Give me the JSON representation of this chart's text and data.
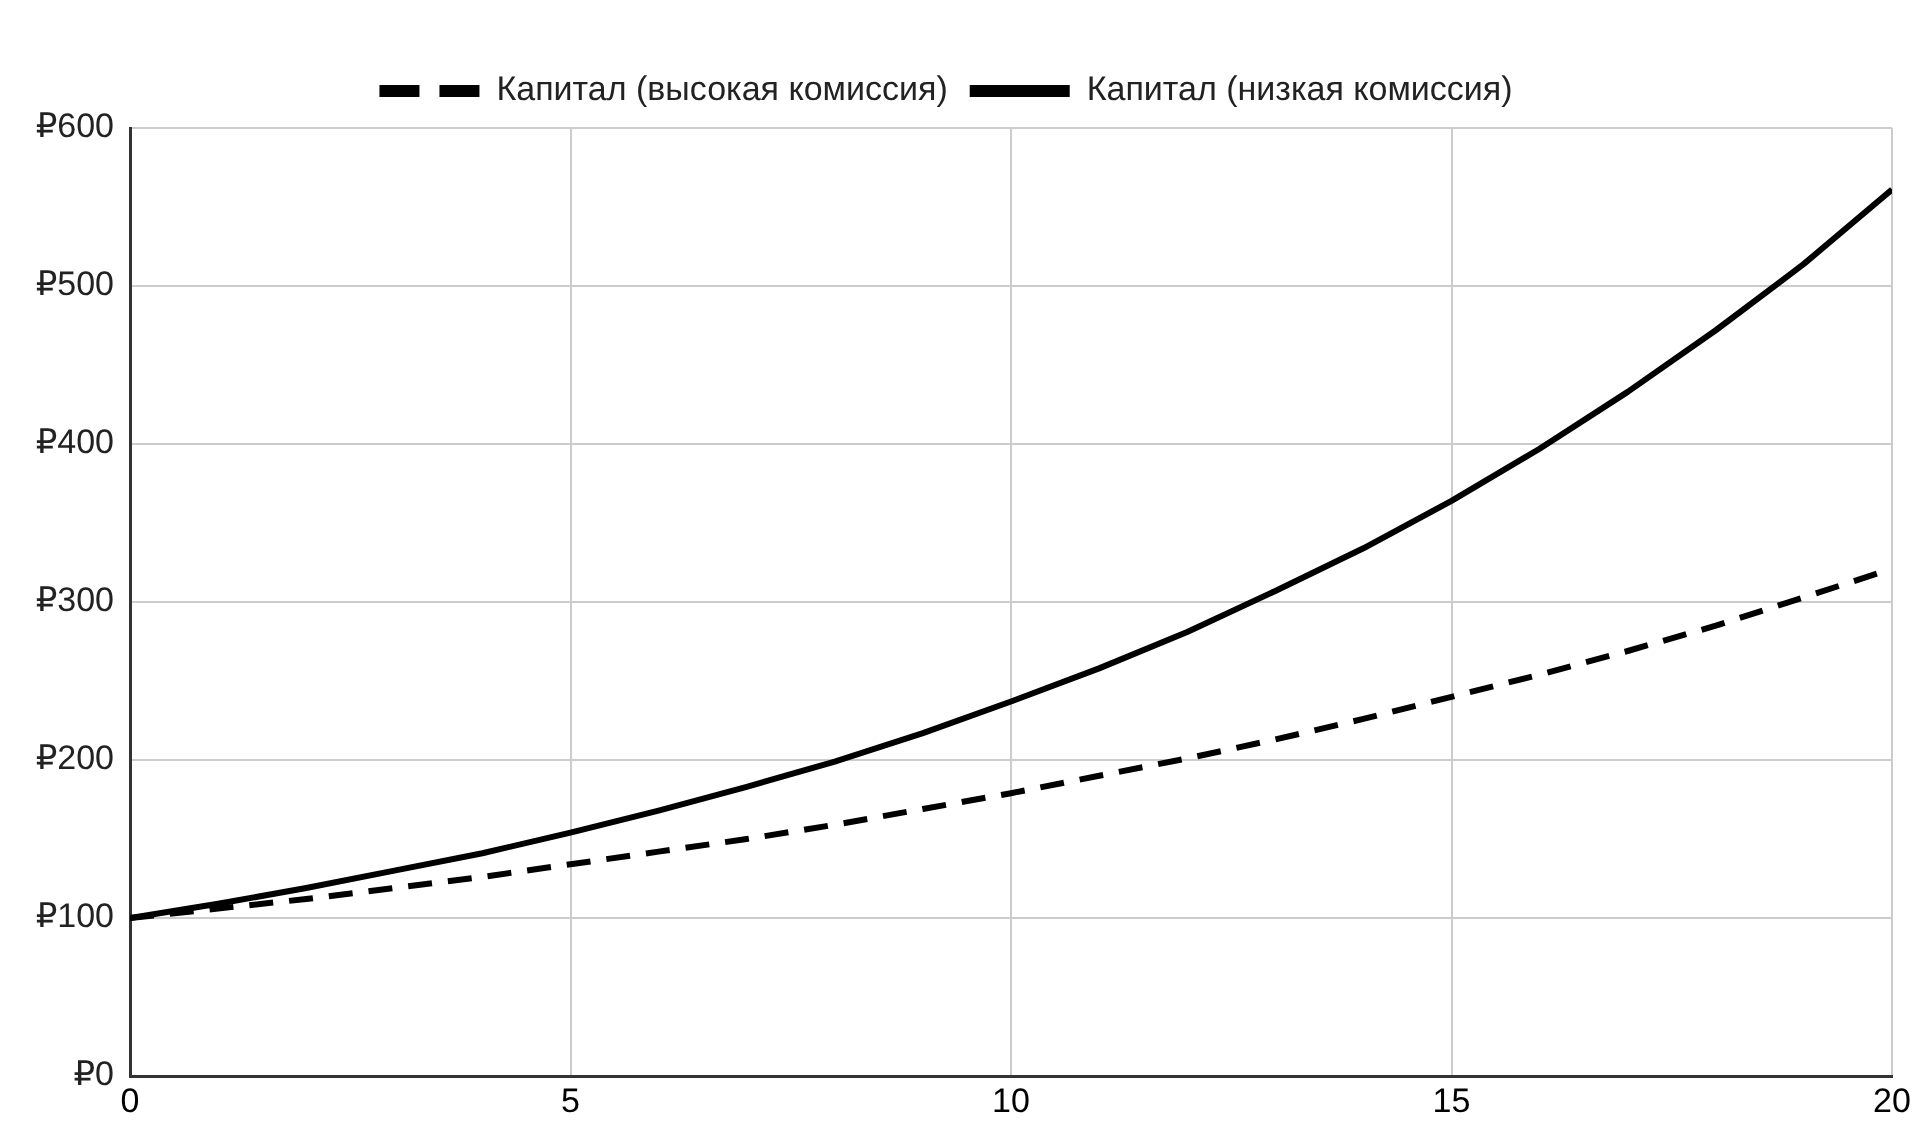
{
  "chart_data": {
    "type": "line",
    "x": [
      0,
      1,
      2,
      3,
      4,
      5,
      6,
      7,
      8,
      9,
      10,
      11,
      12,
      13,
      14,
      15,
      16,
      17,
      18,
      19,
      20
    ],
    "series": [
      {
        "name": "Капитал (высокая комиссия)",
        "color": "#000000",
        "line_style": "dashed",
        "values": [
          100,
          106,
          112,
          119,
          126,
          134,
          142,
          150,
          159,
          169,
          179,
          190,
          201,
          213,
          226,
          240,
          254,
          269,
          285,
          303,
          321
        ]
      },
      {
        "name": "Капитал (низкая комиссия)",
        "color": "#000000",
        "line_style": "solid",
        "values": [
          100,
          109,
          119,
          130,
          141,
          154,
          168,
          183,
          199,
          217,
          237,
          258,
          281,
          307,
          334,
          364,
          397,
          433,
          472,
          514,
          561
        ]
      }
    ],
    "xlim": [
      0,
      20
    ],
    "xticks": [
      0,
      5,
      10,
      15,
      20
    ],
    "ylim": [
      0,
      600
    ],
    "yticks": [
      {
        "value": 0,
        "label": "₽0"
      },
      {
        "value": 100,
        "label": "₽100"
      },
      {
        "value": 200,
        "label": "₽200"
      },
      {
        "value": 300,
        "label": "₽300"
      },
      {
        "value": 400,
        "label": "₽400"
      },
      {
        "value": 500,
        "label": "₽500"
      },
      {
        "value": 600,
        "label": "₽600"
      }
    ],
    "grid": true,
    "legend": "top",
    "marker": "none"
  }
}
